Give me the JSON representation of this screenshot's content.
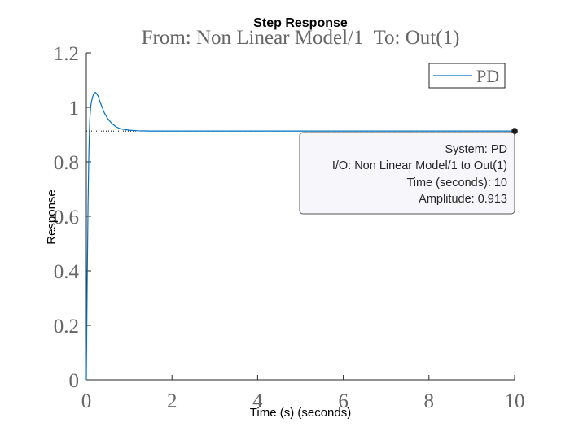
{
  "chart_data": {
    "type": "line",
    "title": "Step Response",
    "subtitle": "From: Non Linear Model/1  To: Out(1)",
    "xlabel": "Time (s) (seconds)",
    "ylabel": "Response",
    "xlim": [
      0,
      10
    ],
    "ylim": [
      0,
      1.2
    ],
    "xticks": [
      0,
      2,
      4,
      6,
      8,
      10
    ],
    "yticks": [
      0,
      0.2,
      0.4,
      0.6,
      0.8,
      1,
      1.2
    ],
    "xtick_labels": [
      "0",
      "2",
      "4",
      "6",
      "8",
      "10"
    ],
    "ytick_labels": [
      "0",
      "0.2",
      "0.4",
      "0.6",
      "0.8",
      "1",
      "1.2"
    ],
    "grid": false,
    "legend": {
      "position": "top-right",
      "entries": [
        "PD"
      ]
    },
    "series": [
      {
        "name": "PD",
        "color": "#0072bd",
        "x": [
          0,
          0.02,
          0.04,
          0.06,
          0.08,
          0.1,
          0.12,
          0.15,
          0.18,
          0.21,
          0.24,
          0.28,
          0.32,
          0.37,
          0.42,
          0.5,
          0.6,
          0.7,
          0.8,
          1.0,
          1.2,
          1.5,
          2.0,
          3.0,
          5.0,
          7.5,
          10.0
        ],
        "y": [
          0,
          0.35,
          0.64,
          0.84,
          0.95,
          1.0,
          1.02,
          1.04,
          1.052,
          1.055,
          1.051,
          1.04,
          1.02,
          1.0,
          0.98,
          0.958,
          0.94,
          0.928,
          0.921,
          0.916,
          0.914,
          0.913,
          0.913,
          0.913,
          0.913,
          0.913,
          0.913
        ]
      }
    ],
    "steady_state": {
      "value": 0.913,
      "style": "dotted"
    },
    "datatip": {
      "x": 10,
      "y": 0.913,
      "lines": [
        "System: PD",
        "I/O: Non Linear Model/1 to Out(1)",
        "Time (seconds): 10",
        "Amplitude: 0.913"
      ]
    }
  }
}
